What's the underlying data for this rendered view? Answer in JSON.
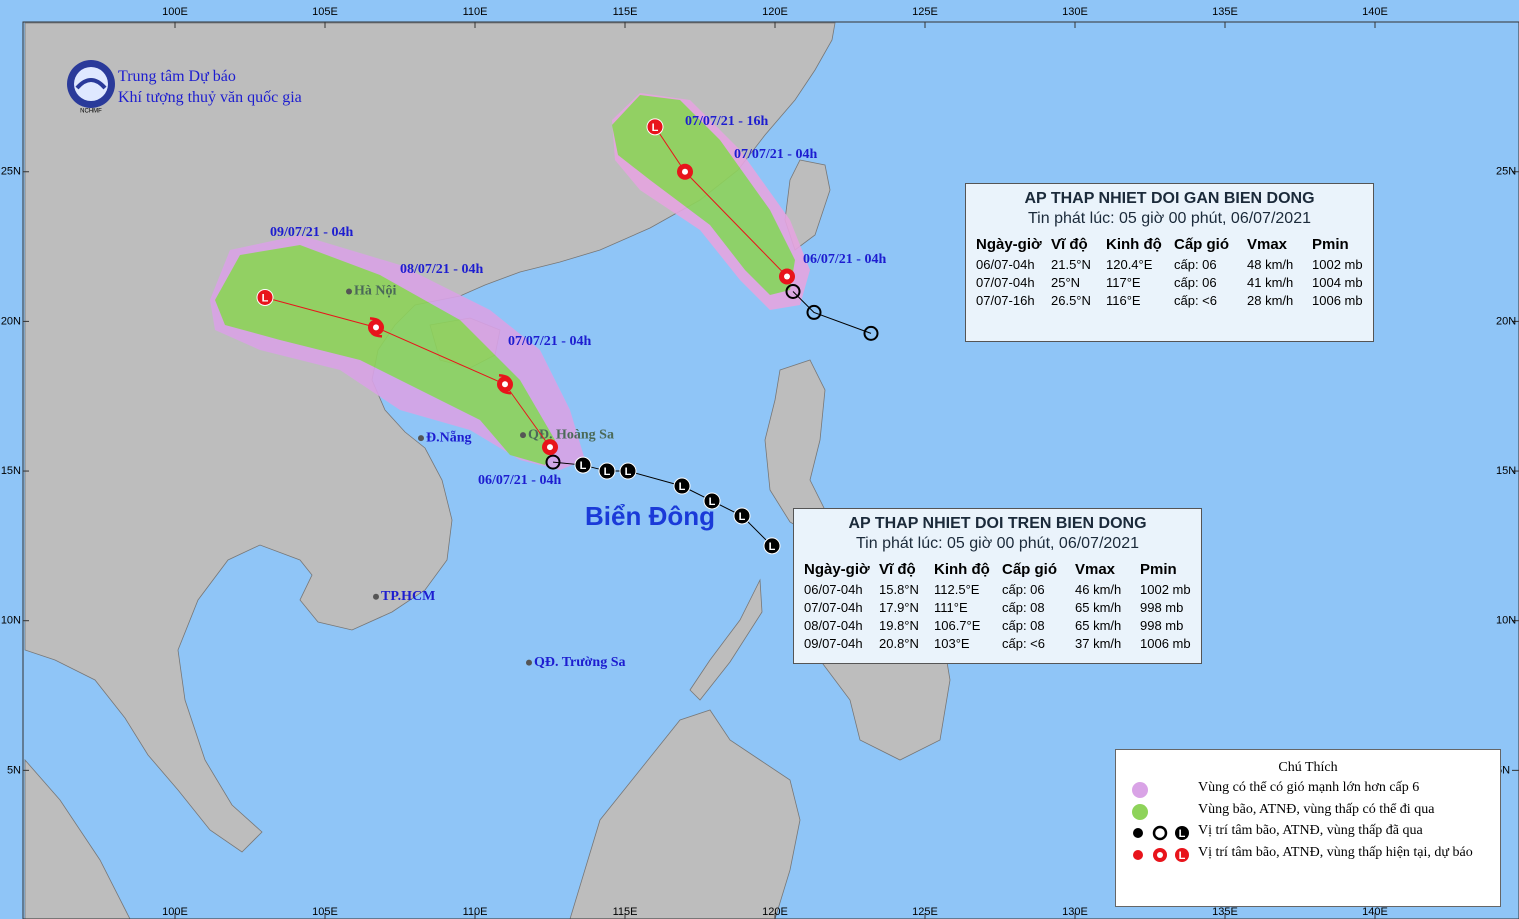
{
  "header": {
    "line1": "Trung tâm Dự báo",
    "line2": "Khí tượng thuỷ văn quốc gia",
    "logo": "NCHMF"
  },
  "map": {
    "lon_ticks": [
      {
        "value": 100,
        "label": "100E"
      },
      {
        "value": 105,
        "label": "105E"
      },
      {
        "value": 110,
        "label": "110E"
      },
      {
        "value": 115,
        "label": "115E"
      },
      {
        "value": 120,
        "label": "120E"
      },
      {
        "value": 125,
        "label": "125E"
      },
      {
        "value": 130,
        "label": "130E"
      },
      {
        "value": 135,
        "label": "135E"
      },
      {
        "value": 140,
        "label": "140E"
      }
    ],
    "lat_ticks": [
      {
        "value": 5,
        "label": "5N"
      },
      {
        "value": 10,
        "label": "10N"
      },
      {
        "value": 15,
        "label": "15N"
      },
      {
        "value": 20,
        "label": "20N"
      },
      {
        "value": 25,
        "label": "25N"
      }
    ],
    "low_letter": "L",
    "sea_label": "Biển Đông",
    "places": [
      {
        "name": "Hà Nội",
        "lon": 105.8,
        "lat": 21.0
      },
      {
        "name": "Đ.Nẵng",
        "lon": 108.2,
        "lat": 16.1
      },
      {
        "name": "QĐ. Hoàng Sa",
        "lon": 111.6,
        "lat": 16.2
      },
      {
        "name": "TP.HCM",
        "lon": 106.7,
        "lat": 10.8
      },
      {
        "name": "QĐ. Trường Sa",
        "lon": 111.8,
        "lat": 8.6
      }
    ]
  },
  "storms": [
    {
      "title": "AP THAP NHIET DOI TREN BIEN DONG",
      "issued": "Tin phát lúc: 05 giờ 00 phút, 06/07/2021",
      "columns": [
        "Ngày-giờ",
        "Vĩ độ",
        "Kinh độ",
        "Cấp gió",
        "Vmax",
        "Pmin"
      ],
      "rows": [
        [
          "06/07-04h",
          "15.8°N",
          "112.5°E",
          "cấp: 06",
          "46 km/h",
          "1002 mb"
        ],
        [
          "07/07-04h",
          "17.9°N",
          "111°E",
          "cấp: 08",
          "65 km/h",
          "998 mb"
        ],
        [
          "08/07-04h",
          "19.8°N",
          "106.7°E",
          "cấp: 08",
          "65 km/h",
          "998 mb"
        ],
        [
          "09/07-04h",
          "20.8°N",
          "103°E",
          "cấp: <6",
          "37 km/h",
          "1006 mb"
        ]
      ],
      "time_labels": [
        "06/07/21 - 04h",
        "07/07/21 - 04h",
        "08/07/21 - 04h",
        "09/07/21 - 04h"
      ],
      "past": {
        "color": "#000000",
        "points": [
          {
            "lon": 119.9,
            "lat": 12.5,
            "kind": "low"
          },
          {
            "lon": 118.9,
            "lat": 13.5,
            "kind": "low"
          },
          {
            "lon": 117.9,
            "lat": 14.0,
            "kind": "low"
          },
          {
            "lon": 116.9,
            "lat": 14.5,
            "kind": "low"
          },
          {
            "lon": 115.1,
            "lat": 15.0,
            "kind": "low"
          },
          {
            "lon": 114.4,
            "lat": 15.0,
            "kind": "low"
          },
          {
            "lon": 113.6,
            "lat": 15.2,
            "kind": "low"
          },
          {
            "lon": 112.6,
            "lat": 15.3,
            "kind": "depression"
          }
        ]
      },
      "forecast": {
        "color": "#e8141b",
        "points": [
          {
            "lon": 112.5,
            "lat": 15.8,
            "kind": "depression"
          },
          {
            "lon": 111,
            "lat": 17.9,
            "kind": "storm"
          },
          {
            "lon": 106.7,
            "lat": 19.8,
            "kind": "storm"
          },
          {
            "lon": 103,
            "lat": 20.8,
            "kind": "low"
          }
        ]
      }
    },
    {
      "title": "AP THAP NHIET DOI GAN BIEN DONG",
      "issued": "Tin phát lúc: 05 giờ 00 phút, 06/07/2021",
      "columns": [
        "Ngày-giờ",
        "Vĩ độ",
        "Kinh độ",
        "Cấp gió",
        "Vmax",
        "Pmin"
      ],
      "rows": [
        [
          "06/07-04h",
          "21.5°N",
          "120.4°E",
          "cấp: 06",
          "48 km/h",
          "1002 mb"
        ],
        [
          "07/07-04h",
          "25°N",
          "117°E",
          "cấp: 06",
          "41 km/h",
          "1004 mb"
        ],
        [
          "07/07-16h",
          "26.5°N",
          "116°E",
          "cấp: <6",
          "28 km/h",
          "1006 mb"
        ]
      ],
      "time_labels": [
        "06/07/21 - 04h",
        "07/07/21 - 04h",
        "07/07/21 - 16h"
      ],
      "past": {
        "color": "#000000",
        "points": [
          {
            "lon": 123.2,
            "lat": 19.6,
            "kind": "depression"
          },
          {
            "lon": 121.3,
            "lat": 20.3,
            "kind": "depression"
          },
          {
            "lon": 120.6,
            "lat": 21.0,
            "kind": "depression"
          }
        ]
      },
      "forecast": {
        "color": "#e8141b",
        "points": [
          {
            "lon": 120.4,
            "lat": 21.5,
            "kind": "depression"
          },
          {
            "lon": 117,
            "lat": 25,
            "kind": "depression"
          },
          {
            "lon": 116,
            "lat": 26.5,
            "kind": "low"
          }
        ]
      }
    }
  ],
  "legend": {
    "title": "Chú Thích",
    "items": [
      "Vùng có thể có gió mạnh lớn hơn cấp 6",
      "Vùng bão, ATNĐ, vùng thấp có thể đi qua",
      "Vị trí tâm bão, ATNĐ, vùng thấp đã qua",
      "Vị trí tâm bão, ATNĐ, vùng thấp hiện tại, dự báo"
    ]
  }
}
